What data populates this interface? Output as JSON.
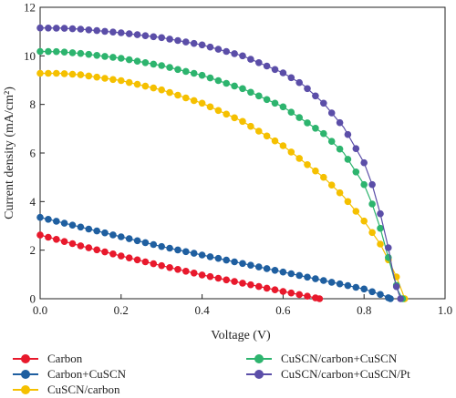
{
  "chart_data": {
    "type": "line",
    "xlabel": "Voltage (V)",
    "ylabel": "Current density (mA/cm²)",
    "xlim": [
      0.0,
      1.0
    ],
    "ylim": [
      0,
      12
    ],
    "xticks": [
      "0.0",
      "0.2",
      "0.4",
      "0.6",
      "0.8",
      "1.0"
    ],
    "yticks": [
      "0",
      "2",
      "4",
      "6",
      "8",
      "10",
      "12"
    ],
    "grid": false,
    "legend_position": "bottom",
    "series": [
      {
        "name": "Carbon",
        "color": "#e8192c",
        "x": [
          0.0,
          0.1,
          0.2,
          0.3,
          0.4,
          0.5,
          0.6,
          0.65,
          0.69
        ],
        "y": [
          2.62,
          2.18,
          1.76,
          1.36,
          0.98,
          0.64,
          0.3,
          0.14,
          0.0
        ]
      },
      {
        "name": "Carbon+CuSCN",
        "color": "#1f5fa0",
        "x": [
          0.0,
          0.1,
          0.2,
          0.3,
          0.4,
          0.5,
          0.6,
          0.7,
          0.8,
          0.85,
          0.865
        ],
        "y": [
          3.35,
          2.95,
          2.55,
          2.15,
          1.8,
          1.45,
          1.1,
          0.75,
          0.4,
          0.12,
          0.0
        ]
      },
      {
        "name": "CuSCN/carbon",
        "color": "#f5c000",
        "x": [
          0.0,
          0.05,
          0.1,
          0.2,
          0.3,
          0.4,
          0.5,
          0.6,
          0.7,
          0.75,
          0.8,
          0.84,
          0.86,
          0.88,
          0.895,
          0.9
        ],
        "y": [
          9.28,
          9.28,
          9.22,
          8.98,
          8.6,
          8.05,
          7.3,
          6.3,
          5.0,
          4.2,
          3.2,
          2.25,
          1.6,
          0.9,
          0.25,
          0.0
        ]
      },
      {
        "name": "CuSCN/carbon+CuSCN",
        "color": "#2db46e",
        "x": [
          0.0,
          0.05,
          0.1,
          0.2,
          0.3,
          0.4,
          0.5,
          0.6,
          0.7,
          0.75,
          0.8,
          0.82,
          0.84,
          0.86,
          0.875,
          0.885,
          0.895
        ],
        "y": [
          10.18,
          10.17,
          10.1,
          9.9,
          9.6,
          9.2,
          8.65,
          7.9,
          6.8,
          6.0,
          4.7,
          3.9,
          2.9,
          1.7,
          0.8,
          0.3,
          0.0
        ]
      },
      {
        "name": "CuSCN/carbon+CuSCN/Pt",
        "color": "#5b4ea8",
        "x": [
          0.0,
          0.05,
          0.1,
          0.2,
          0.3,
          0.4,
          0.5,
          0.6,
          0.65,
          0.7,
          0.75,
          0.8,
          0.82,
          0.84,
          0.86,
          0.87,
          0.88,
          0.89
        ],
        "y": [
          11.15,
          11.14,
          11.1,
          10.95,
          10.75,
          10.45,
          10.0,
          9.3,
          8.8,
          8.05,
          7.05,
          5.6,
          4.7,
          3.5,
          2.1,
          1.2,
          0.5,
          0.0
        ]
      }
    ]
  }
}
